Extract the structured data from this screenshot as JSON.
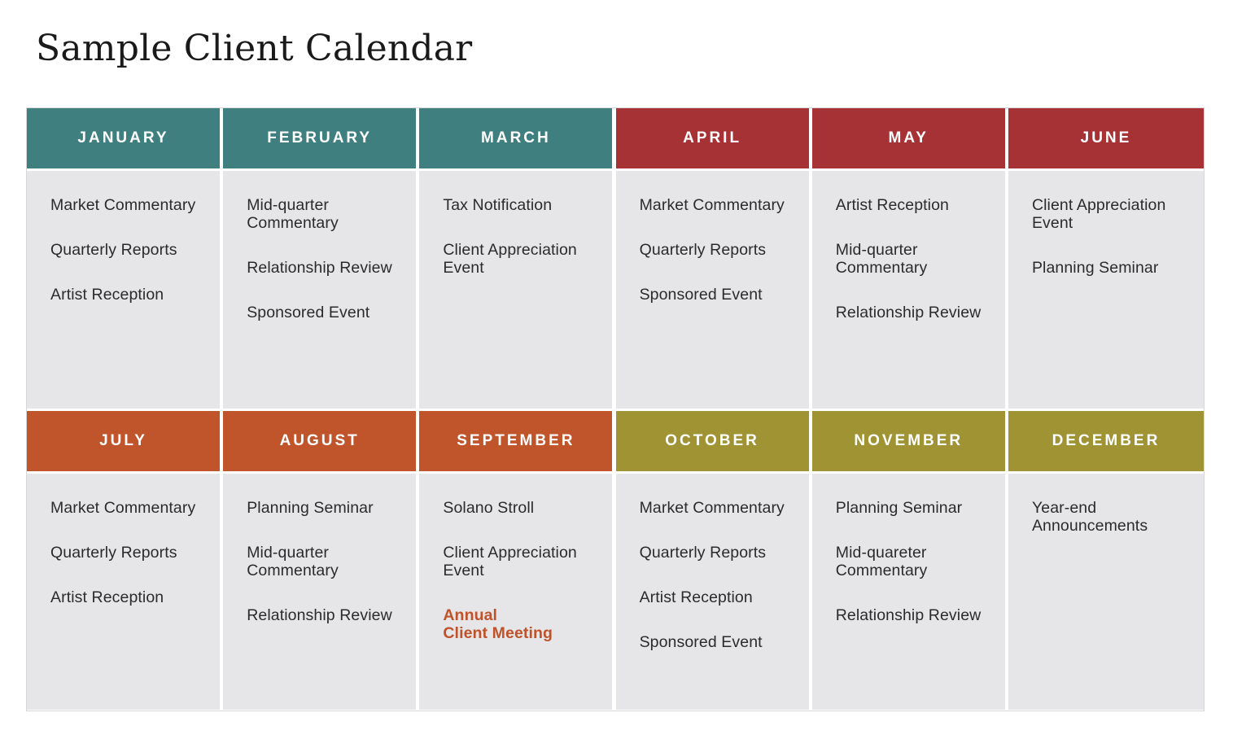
{
  "title": "Sample Client Calendar",
  "colors": {
    "teal": "#3f7f80",
    "red": "#a63236",
    "orange": "#c0542a",
    "olive": "#a09334",
    "cell_bg": "#e6e6e8",
    "highlight_text": "#c0522a"
  },
  "months": [
    {
      "name": "JANUARY",
      "color": "#3f7f80",
      "events": [
        "Market Commentary",
        "Quarterly Reports",
        "Artist Reception"
      ]
    },
    {
      "name": "FEBRUARY",
      "color": "#3f7f80",
      "events": [
        "Mid-quarter\nCommentary",
        "Relationship Review",
        "Sponsored Event"
      ]
    },
    {
      "name": "MARCH",
      "color": "#3f7f80",
      "events": [
        "Tax Notification",
        "Client Appreciation\nEvent"
      ]
    },
    {
      "name": "APRIL",
      "color": "#a63236",
      "events": [
        "Market Commentary",
        "Quarterly Reports",
        "Sponsored Event"
      ]
    },
    {
      "name": "MAY",
      "color": "#a63236",
      "events": [
        "Artist Reception",
        "Mid-quarter\nCommentary",
        "Relationship Review"
      ]
    },
    {
      "name": "JUNE",
      "color": "#a63236",
      "events": [
        "Client Appreciation\nEvent",
        "Planning Seminar"
      ]
    },
    {
      "name": "JULY",
      "color": "#c0542a",
      "events": [
        "Market Commentary",
        "Quarterly Reports",
        "Artist Reception"
      ]
    },
    {
      "name": "AUGUST",
      "color": "#c0542a",
      "events": [
        "Planning Seminar",
        "Mid-quarter\nCommentary",
        "Relationship Review"
      ]
    },
    {
      "name": "SEPTEMBER",
      "color": "#c0542a",
      "events": [
        "Solano Stroll",
        "Client Appreciation\nEvent",
        "Annual\nClient Meeting"
      ],
      "highlight_index": 2
    },
    {
      "name": "OCTOBER",
      "color": "#a09334",
      "events": [
        "Market Commentary",
        "Quarterly Reports",
        "Artist Reception",
        "Sponsored Event"
      ]
    },
    {
      "name": "NOVEMBER",
      "color": "#a09334",
      "events": [
        "Planning Seminar",
        "Mid-quareter\nCommentary",
        "Relationship Review"
      ]
    },
    {
      "name": "DECEMBER",
      "color": "#a09334",
      "events": [
        "Year-end\nAnnouncements"
      ]
    }
  ]
}
